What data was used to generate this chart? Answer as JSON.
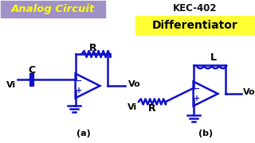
{
  "bg_color": "#ffffff",
  "title_box_color": "#a090c8",
  "title_text": "Analog Circuit",
  "title_text_color": "#ffff00",
  "kec_text": "KEC-402",
  "kec_text_color": "#111111",
  "diff_box_color": "#ffff33",
  "diff_text": "Differentiator",
  "diff_text_color": "#000000",
  "circuit_color": "#1010cc",
  "label_color": "#000000",
  "lw": 1.8
}
